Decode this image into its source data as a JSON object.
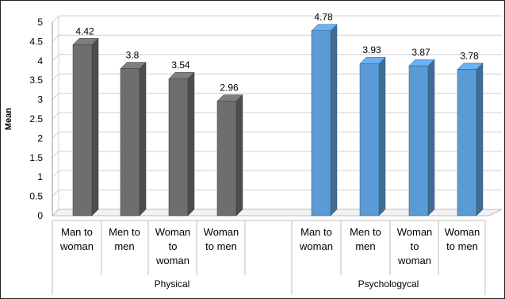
{
  "chart_data": {
    "type": "bar",
    "ylabel": "Mean",
    "ylim": [
      0,
      5
    ],
    "yticks": [
      "0",
      "0.5",
      "1",
      "1.5",
      "2",
      "2.5",
      "3",
      "3.5",
      "4",
      "4.5",
      "5"
    ],
    "grid": true,
    "groups": [
      {
        "name": "Physical",
        "color": "#6e6e6e",
        "categories": [
          [
            "Man to",
            "woman"
          ],
          [
            "Men to",
            "men"
          ],
          [
            "Woman",
            "to",
            "woman"
          ],
          [
            "Woman",
            "to men"
          ]
        ],
        "values": [
          4.42,
          3.8,
          3.54,
          2.96
        ],
        "labels": [
          "4.42",
          "3.8",
          "3.54",
          "2.96"
        ]
      },
      {
        "name": "Psychologycal",
        "color": "#5b9bd5",
        "categories": [
          [
            "Man to",
            "woman"
          ],
          [
            "Men to",
            "men"
          ],
          [
            "Woman",
            "to",
            "woman"
          ],
          [
            "Woman",
            "to men"
          ]
        ],
        "values": [
          4.78,
          3.93,
          3.87,
          3.78
        ],
        "labels": [
          "4.78",
          "3.93",
          "3.87",
          "3.78"
        ]
      }
    ]
  }
}
